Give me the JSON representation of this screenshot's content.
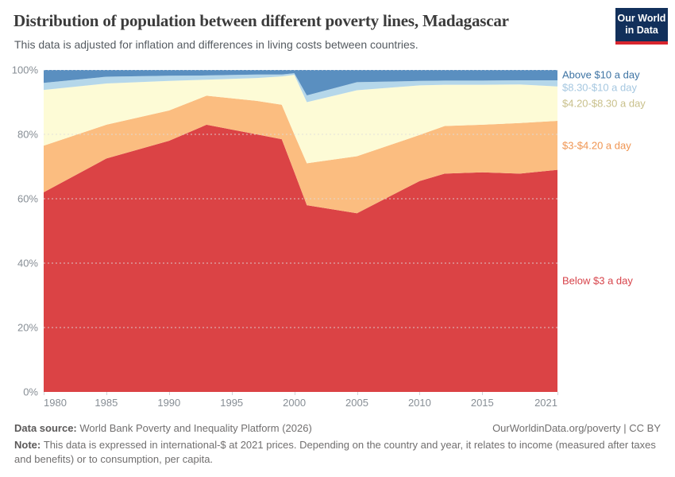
{
  "header": {
    "title": "Distribution of population between different poverty lines, Madagascar",
    "subtitle": "This data is adjusted for inflation and differences in living costs between countries."
  },
  "logo": {
    "line1": "Our World",
    "line2": "in Data",
    "bg_color": "#12305b",
    "accent_color": "#d8252e"
  },
  "chart_data": {
    "type": "area",
    "stacked": true,
    "title": "Distribution of population between different poverty lines, Madagascar",
    "xlabel": "",
    "ylabel": "",
    "ylim": [
      0,
      100
    ],
    "grid": "dashed-horizontal",
    "legend_position": "right",
    "x": [
      1980,
      1985,
      1990,
      1993,
      1997,
      1999,
      2000,
      2001,
      2005,
      2010,
      2012,
      2015,
      2018,
      2021
    ],
    "series": [
      {
        "key": "below-3",
        "name": "Below $3 a day",
        "color": "#db4345",
        "label_color": "#d7434a",
        "values": [
          62.0,
          72.5,
          78.0,
          83.0,
          80.0,
          78.5,
          68.3,
          58.0,
          55.5,
          65.5,
          67.8,
          68.2,
          67.8,
          69.0
        ]
      },
      {
        "key": "3-4.20",
        "name": "$3-$4.20 a day",
        "color": "#fbbd80",
        "label_color": "#ef9552",
        "values": [
          14.5,
          10.5,
          9.4,
          9.0,
          10.4,
          10.7,
          11.7,
          13.0,
          17.7,
          14.3,
          14.8,
          14.8,
          15.7,
          15.2
        ]
      },
      {
        "key": "4.20-8.30",
        "name": "$4.20-$8.30 a day",
        "color": "#fdfbd6",
        "label_color": "#c9c08b",
        "values": [
          17.3,
          12.8,
          9.2,
          5.0,
          7.1,
          8.8,
          18.5,
          19.0,
          20.5,
          15.4,
          12.8,
          12.4,
          12.0,
          10.7
        ]
      },
      {
        "key": "8.30-10",
        "name": "$8.30-$10 a day",
        "color": "#b5d7ea",
        "label_color": "#a5c7e0",
        "values": [
          2.2,
          2.1,
          1.6,
          1.3,
          1.1,
          0.6,
          0.5,
          2.1,
          2.5,
          1.4,
          1.3,
          1.3,
          1.3,
          1.9
        ]
      },
      {
        "key": "above-10",
        "name": "Above $10 a day",
        "color": "#5a8fc0",
        "label_color": "#3d73a3",
        "values": [
          4.0,
          2.1,
          1.8,
          1.7,
          1.4,
          1.4,
          1.0,
          7.9,
          3.8,
          3.4,
          3.3,
          3.3,
          3.2,
          3.2
        ]
      }
    ],
    "y_ticks": [
      {
        "value": 0,
        "label": "0%"
      },
      {
        "value": 20,
        "label": "20%"
      },
      {
        "value": 40,
        "label": "40%"
      },
      {
        "value": 60,
        "label": "60%"
      },
      {
        "value": 80,
        "label": "80%"
      },
      {
        "value": 100,
        "label": "100%"
      }
    ],
    "x_ticks": [
      {
        "value": 1980,
        "label": "1980"
      },
      {
        "value": 1985,
        "label": "1985"
      },
      {
        "value": 1990,
        "label": "1990"
      },
      {
        "value": 1995,
        "label": "1995"
      },
      {
        "value": 2000,
        "label": "2000"
      },
      {
        "value": 2005,
        "label": "2005"
      },
      {
        "value": 2010,
        "label": "2010"
      },
      {
        "value": 2015,
        "label": "2015"
      },
      {
        "value": 2021,
        "label": "2021"
      }
    ]
  },
  "footer": {
    "source_label": "Data source:",
    "source_text": "World Bank Poverty and Inequality Platform (2026)",
    "link_text": "OurWorldinData.org/poverty | CC BY",
    "note_label": "Note:",
    "note_text": "This data is expressed in international-$ at 2021 prices. Depending on the country and year, it relates to income (measured after taxes and benefits) or to consumption, per capita."
  }
}
